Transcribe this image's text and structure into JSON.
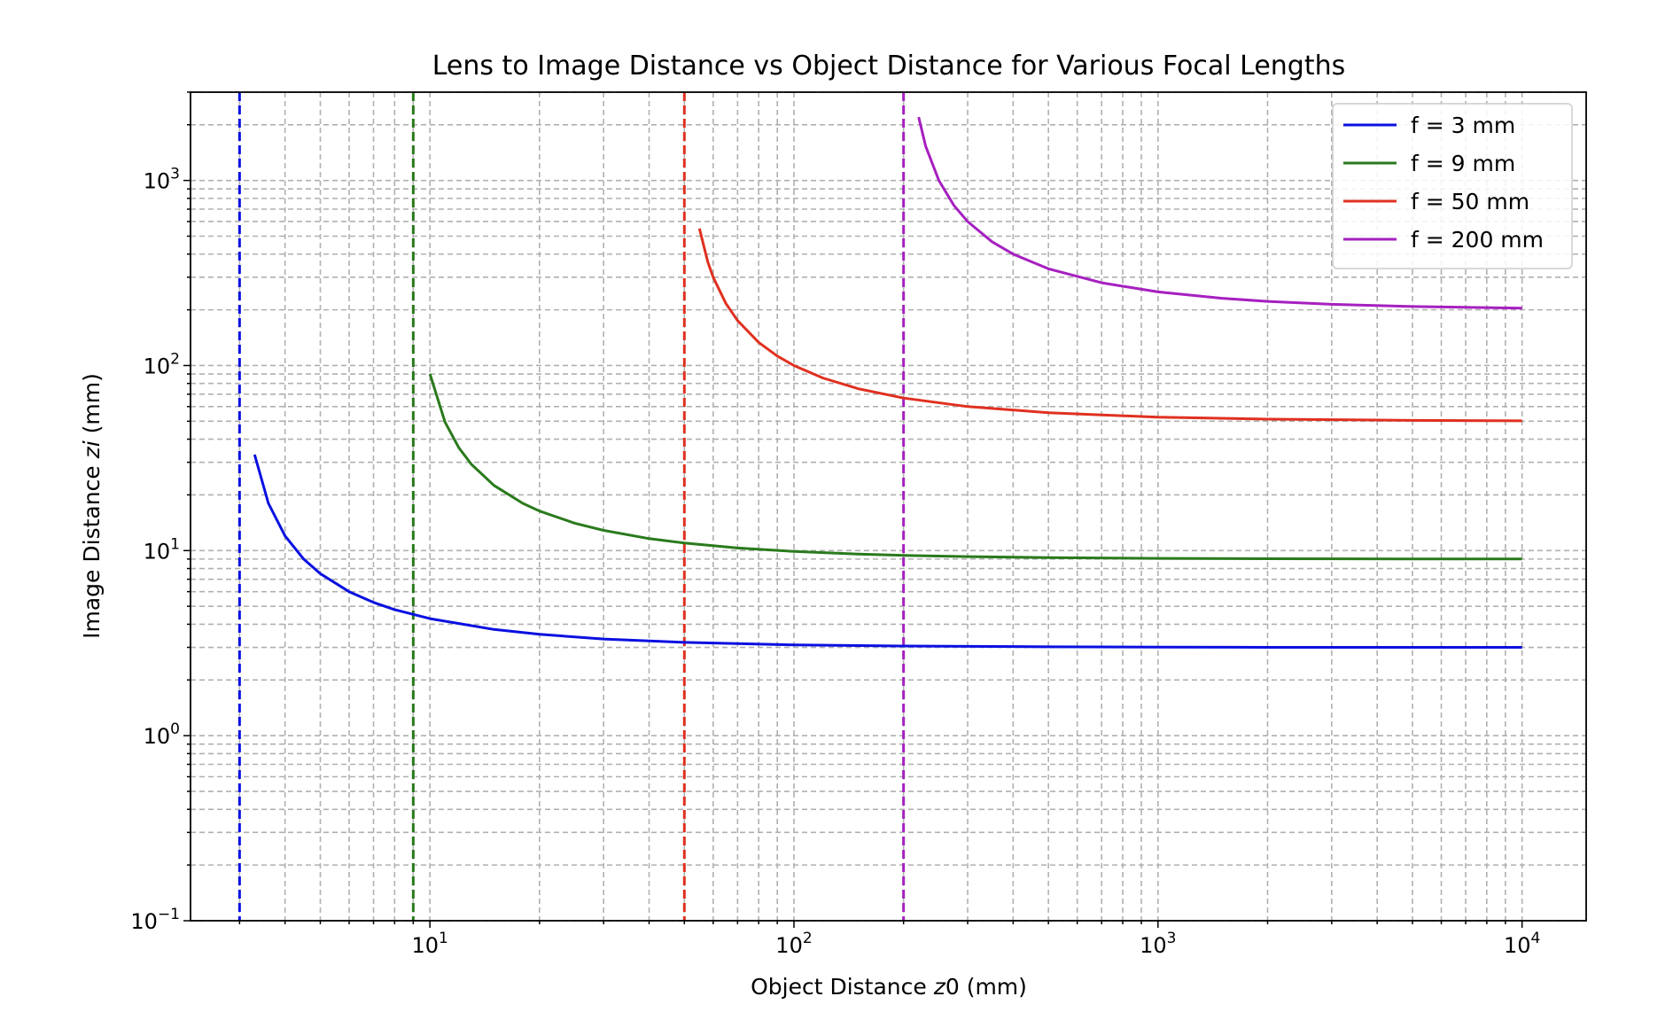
{
  "chart_data": {
    "type": "line",
    "title": "Lens to Image Distance vs Object Distance for Various Focal Lengths",
    "xlabel_prefix": "Object Distance ",
    "xlabel_var": "z",
    "xlabel_suffix": "0 (mm)",
    "ylabel_prefix": "Image Distance ",
    "ylabel_var": "zi",
    "ylabel_suffix": " (mm)",
    "xscale": "log",
    "yscale": "log",
    "xlim": [
      2.2,
      15000
    ],
    "ylim": [
      0.1,
      3000
    ],
    "grid": "both (major and minor), dashed",
    "legend_position": "upper right",
    "x_ticks": [
      {
        "value": 10,
        "base": "10",
        "exp": "1"
      },
      {
        "value": 100,
        "base": "10",
        "exp": "2"
      },
      {
        "value": 1000,
        "base": "10",
        "exp": "3"
      },
      {
        "value": 10000,
        "base": "10",
        "exp": "4"
      }
    ],
    "y_ticks": [
      {
        "value": 0.1,
        "base": "10",
        "exp": "−1"
      },
      {
        "value": 1,
        "base": "10",
        "exp": "0"
      },
      {
        "value": 10,
        "base": "10",
        "exp": "1"
      },
      {
        "value": 100,
        "base": "10",
        "exp": "2"
      },
      {
        "value": 1000,
        "base": "10",
        "exp": "3"
      }
    ],
    "series": [
      {
        "name": "f = 3 mm",
        "color": "#0a10e0",
        "focal_length": 3,
        "x": [
          3.3,
          3.6,
          4,
          4.5,
          5,
          6,
          7,
          8,
          10,
          15,
          20,
          30,
          50,
          100,
          200,
          500,
          1000,
          2000,
          5000,
          10000
        ],
        "y": [
          33,
          18,
          12,
          9,
          7.5,
          6,
          5.25,
          4.8,
          4.29,
          3.75,
          3.53,
          3.33,
          3.19,
          3.09,
          3.05,
          3.02,
          3.01,
          3.0,
          3.0,
          3.0
        ]
      },
      {
        "name": "f = 9 mm",
        "color": "#2a7a1c",
        "focal_length": 9,
        "x": [
          10,
          11,
          12,
          13,
          15,
          18,
          20,
          25,
          30,
          40,
          50,
          70,
          100,
          150,
          200,
          300,
          500,
          1000,
          2000,
          5000,
          10000
        ],
        "y": [
          90,
          49.5,
          36,
          29.25,
          22.5,
          18,
          16.36,
          14.06,
          12.86,
          11.61,
          10.98,
          10.33,
          9.89,
          9.57,
          9.42,
          9.28,
          9.16,
          9.08,
          9.04,
          9.02,
          9.01
        ]
      },
      {
        "name": "f = 50 mm",
        "color": "#e03020",
        "focal_length": 50,
        "x": [
          55,
          58,
          60,
          65,
          70,
          80,
          90,
          100,
          120,
          150,
          200,
          300,
          500,
          1000,
          2000,
          5000,
          10000
        ],
        "y": [
          550,
          362.5,
          300,
          216.7,
          175,
          133.3,
          112.5,
          100,
          85.7,
          75,
          66.7,
          60,
          55.6,
          52.6,
          51.3,
          50.5,
          50.25
        ]
      },
      {
        "name": "f = 200 mm",
        "color": "#a620c0",
        "focal_length": 200,
        "x": [
          220,
          230,
          250,
          275,
          300,
          350,
          400,
          500,
          700,
          1000,
          1500,
          2000,
          3000,
          5000,
          10000
        ],
        "y": [
          2200,
          1533,
          1000,
          733,
          600,
          466.7,
          400,
          333.3,
          280,
          250,
          230.8,
          222.2,
          214.3,
          208.3,
          204.1
        ]
      }
    ]
  }
}
